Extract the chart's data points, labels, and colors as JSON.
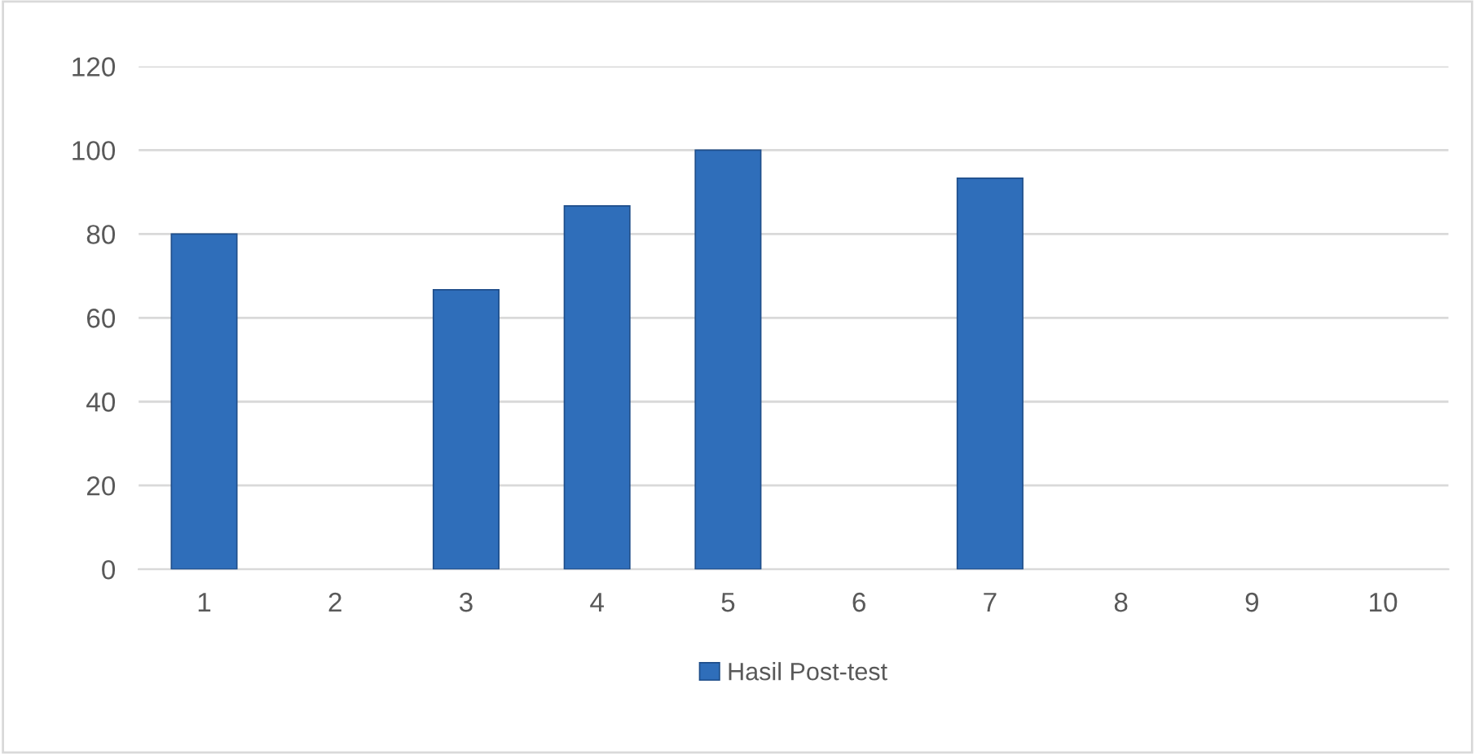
{
  "chart_data": {
    "type": "bar",
    "categories": [
      "1",
      "2",
      "3",
      "4",
      "5",
      "6",
      "7",
      "8",
      "9",
      "10"
    ],
    "series": [
      {
        "name": "Hasil Post-test",
        "color": "#2f6eba",
        "values": [
          80,
          null,
          66.7,
          86.7,
          100,
          null,
          93.3,
          null,
          null,
          null
        ]
      }
    ],
    "ylim": [
      0,
      120
    ],
    "yticks": [
      0,
      20,
      40,
      60,
      80,
      100,
      120
    ],
    "grid": "y",
    "legend": "bottom"
  }
}
